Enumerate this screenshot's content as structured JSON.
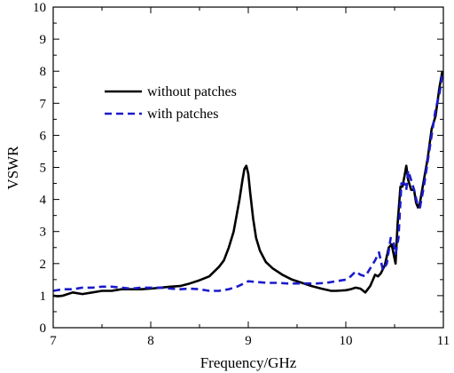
{
  "chart_data": {
    "type": "line",
    "xlabel": "Frequency/GHz",
    "ylabel": "VSWR",
    "xlim": [
      7,
      11
    ],
    "ylim": [
      0,
      10
    ],
    "xticks": [
      "7",
      "8",
      "9",
      "10",
      "11"
    ],
    "yticks": [
      "0",
      "1",
      "2",
      "3",
      "4",
      "5",
      "6",
      "7",
      "8",
      "9",
      "10"
    ],
    "legend_position": "upper-left",
    "series": [
      {
        "name": "without patches",
        "color": "#000000",
        "style": "solid",
        "x": [
          7.0,
          7.05,
          7.1,
          7.2,
          7.3,
          7.4,
          7.5,
          7.6,
          7.7,
          7.8,
          7.9,
          8.0,
          8.1,
          8.2,
          8.3,
          8.4,
          8.5,
          8.6,
          8.7,
          8.75,
          8.8,
          8.85,
          8.88,
          8.91,
          8.94,
          8.96,
          8.98,
          9.0,
          9.02,
          9.05,
          9.08,
          9.12,
          9.18,
          9.25,
          9.35,
          9.45,
          9.55,
          9.65,
          9.75,
          9.85,
          9.9,
          10.0,
          10.05,
          10.1,
          10.15,
          10.2,
          10.25,
          10.3,
          10.33,
          10.36,
          10.4,
          10.44,
          10.47,
          10.49,
          10.51,
          10.53,
          10.56,
          10.58,
          10.6,
          10.62,
          10.64,
          10.67,
          10.7,
          10.72,
          10.74,
          10.76,
          10.8,
          10.84,
          10.88,
          10.92,
          10.96,
          10.99
        ],
        "y": [
          1.0,
          0.98,
          1.0,
          1.1,
          1.05,
          1.1,
          1.15,
          1.15,
          1.2,
          1.2,
          1.2,
          1.22,
          1.25,
          1.28,
          1.3,
          1.38,
          1.48,
          1.6,
          1.9,
          2.1,
          2.5,
          3.0,
          3.5,
          4.0,
          4.6,
          4.95,
          5.05,
          4.8,
          4.2,
          3.4,
          2.8,
          2.4,
          2.05,
          1.85,
          1.65,
          1.5,
          1.4,
          1.3,
          1.22,
          1.15,
          1.15,
          1.17,
          1.2,
          1.25,
          1.22,
          1.1,
          1.3,
          1.65,
          1.6,
          1.7,
          1.95,
          2.5,
          2.6,
          2.3,
          2.0,
          3.2,
          4.4,
          4.4,
          4.7,
          5.05,
          4.6,
          4.3,
          4.3,
          3.9,
          3.75,
          3.9,
          4.6,
          5.3,
          6.2,
          6.6,
          7.5,
          8.0
        ]
      },
      {
        "name": "with patches",
        "color": "#1a1acc",
        "style": "dashed",
        "x": [
          7.0,
          7.1,
          7.2,
          7.3,
          7.4,
          7.5,
          7.6,
          7.7,
          7.8,
          7.9,
          8.0,
          8.1,
          8.2,
          8.3,
          8.4,
          8.5,
          8.6,
          8.7,
          8.8,
          8.9,
          9.0,
          9.1,
          9.2,
          9.3,
          9.4,
          9.5,
          9.6,
          9.7,
          9.8,
          9.9,
          10.0,
          10.05,
          10.1,
          10.15,
          10.2,
          10.25,
          10.3,
          10.34,
          10.38,
          10.42,
          10.46,
          10.49,
          10.51,
          10.54,
          10.57,
          10.6,
          10.62,
          10.64,
          10.67,
          10.7,
          10.73,
          10.76,
          10.8,
          10.84,
          10.88,
          10.92,
          10.96,
          10.99
        ],
        "y": [
          1.15,
          1.2,
          1.2,
          1.25,
          1.25,
          1.28,
          1.28,
          1.25,
          1.22,
          1.25,
          1.25,
          1.25,
          1.22,
          1.2,
          1.22,
          1.2,
          1.15,
          1.15,
          1.2,
          1.3,
          1.45,
          1.42,
          1.4,
          1.4,
          1.38,
          1.38,
          1.38,
          1.38,
          1.4,
          1.45,
          1.5,
          1.6,
          1.75,
          1.65,
          1.6,
          1.85,
          2.1,
          2.35,
          1.8,
          2.0,
          2.8,
          2.65,
          2.3,
          2.8,
          4.5,
          4.5,
          4.3,
          4.9,
          4.6,
          4.3,
          3.9,
          3.75,
          4.4,
          5.2,
          6.0,
          6.8,
          7.3,
          7.9
        ]
      }
    ]
  }
}
